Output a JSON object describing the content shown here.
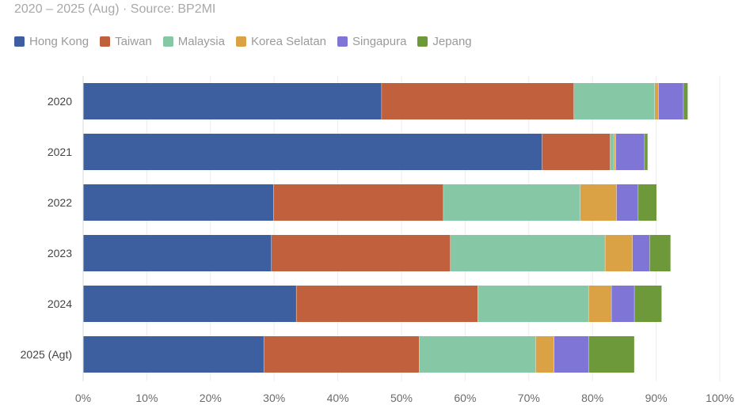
{
  "chart_data": {
    "type": "bar",
    "orientation": "horizontal",
    "stacked": true,
    "subtitle": "2020 – 2025 (Aug) · Source: BP2MI",
    "categories": [
      "2020",
      "2021",
      "2022",
      "2023",
      "2024",
      "2025 (Agt)"
    ],
    "series": [
      {
        "name": "Hong Kong",
        "color": "#3d5fa0",
        "values": [
          46.9,
          72.1,
          29.9,
          29.6,
          33.5,
          28.4
        ]
      },
      {
        "name": "Taiwan",
        "color": "#c0603c",
        "values": [
          30.2,
          10.7,
          26.7,
          28.1,
          28.5,
          24.4
        ]
      },
      {
        "name": "Malaysia",
        "color": "#86c7a6",
        "values": [
          12.7,
          0.6,
          21.5,
          24.3,
          17.4,
          18.3
        ]
      },
      {
        "name": "Korea Selatan",
        "color": "#dba245",
        "values": [
          0.6,
          0.3,
          5.7,
          4.3,
          3.6,
          2.9
        ]
      },
      {
        "name": "Singapura",
        "color": "#7f75d6",
        "values": [
          3.9,
          4.5,
          3.4,
          2.7,
          3.6,
          5.4
        ]
      },
      {
        "name": "Jepang",
        "color": "#6e993a",
        "values": [
          0.7,
          0.5,
          2.9,
          3.3,
          4.3,
          7.2
        ]
      }
    ],
    "xlim": [
      0,
      100
    ],
    "xticks": [
      "0%",
      "10%",
      "20%",
      "30%",
      "40%",
      "50%",
      "60%",
      "70%",
      "80%",
      "90%",
      "100%"
    ],
    "legend_position": "top-left",
    "grid": true
  }
}
